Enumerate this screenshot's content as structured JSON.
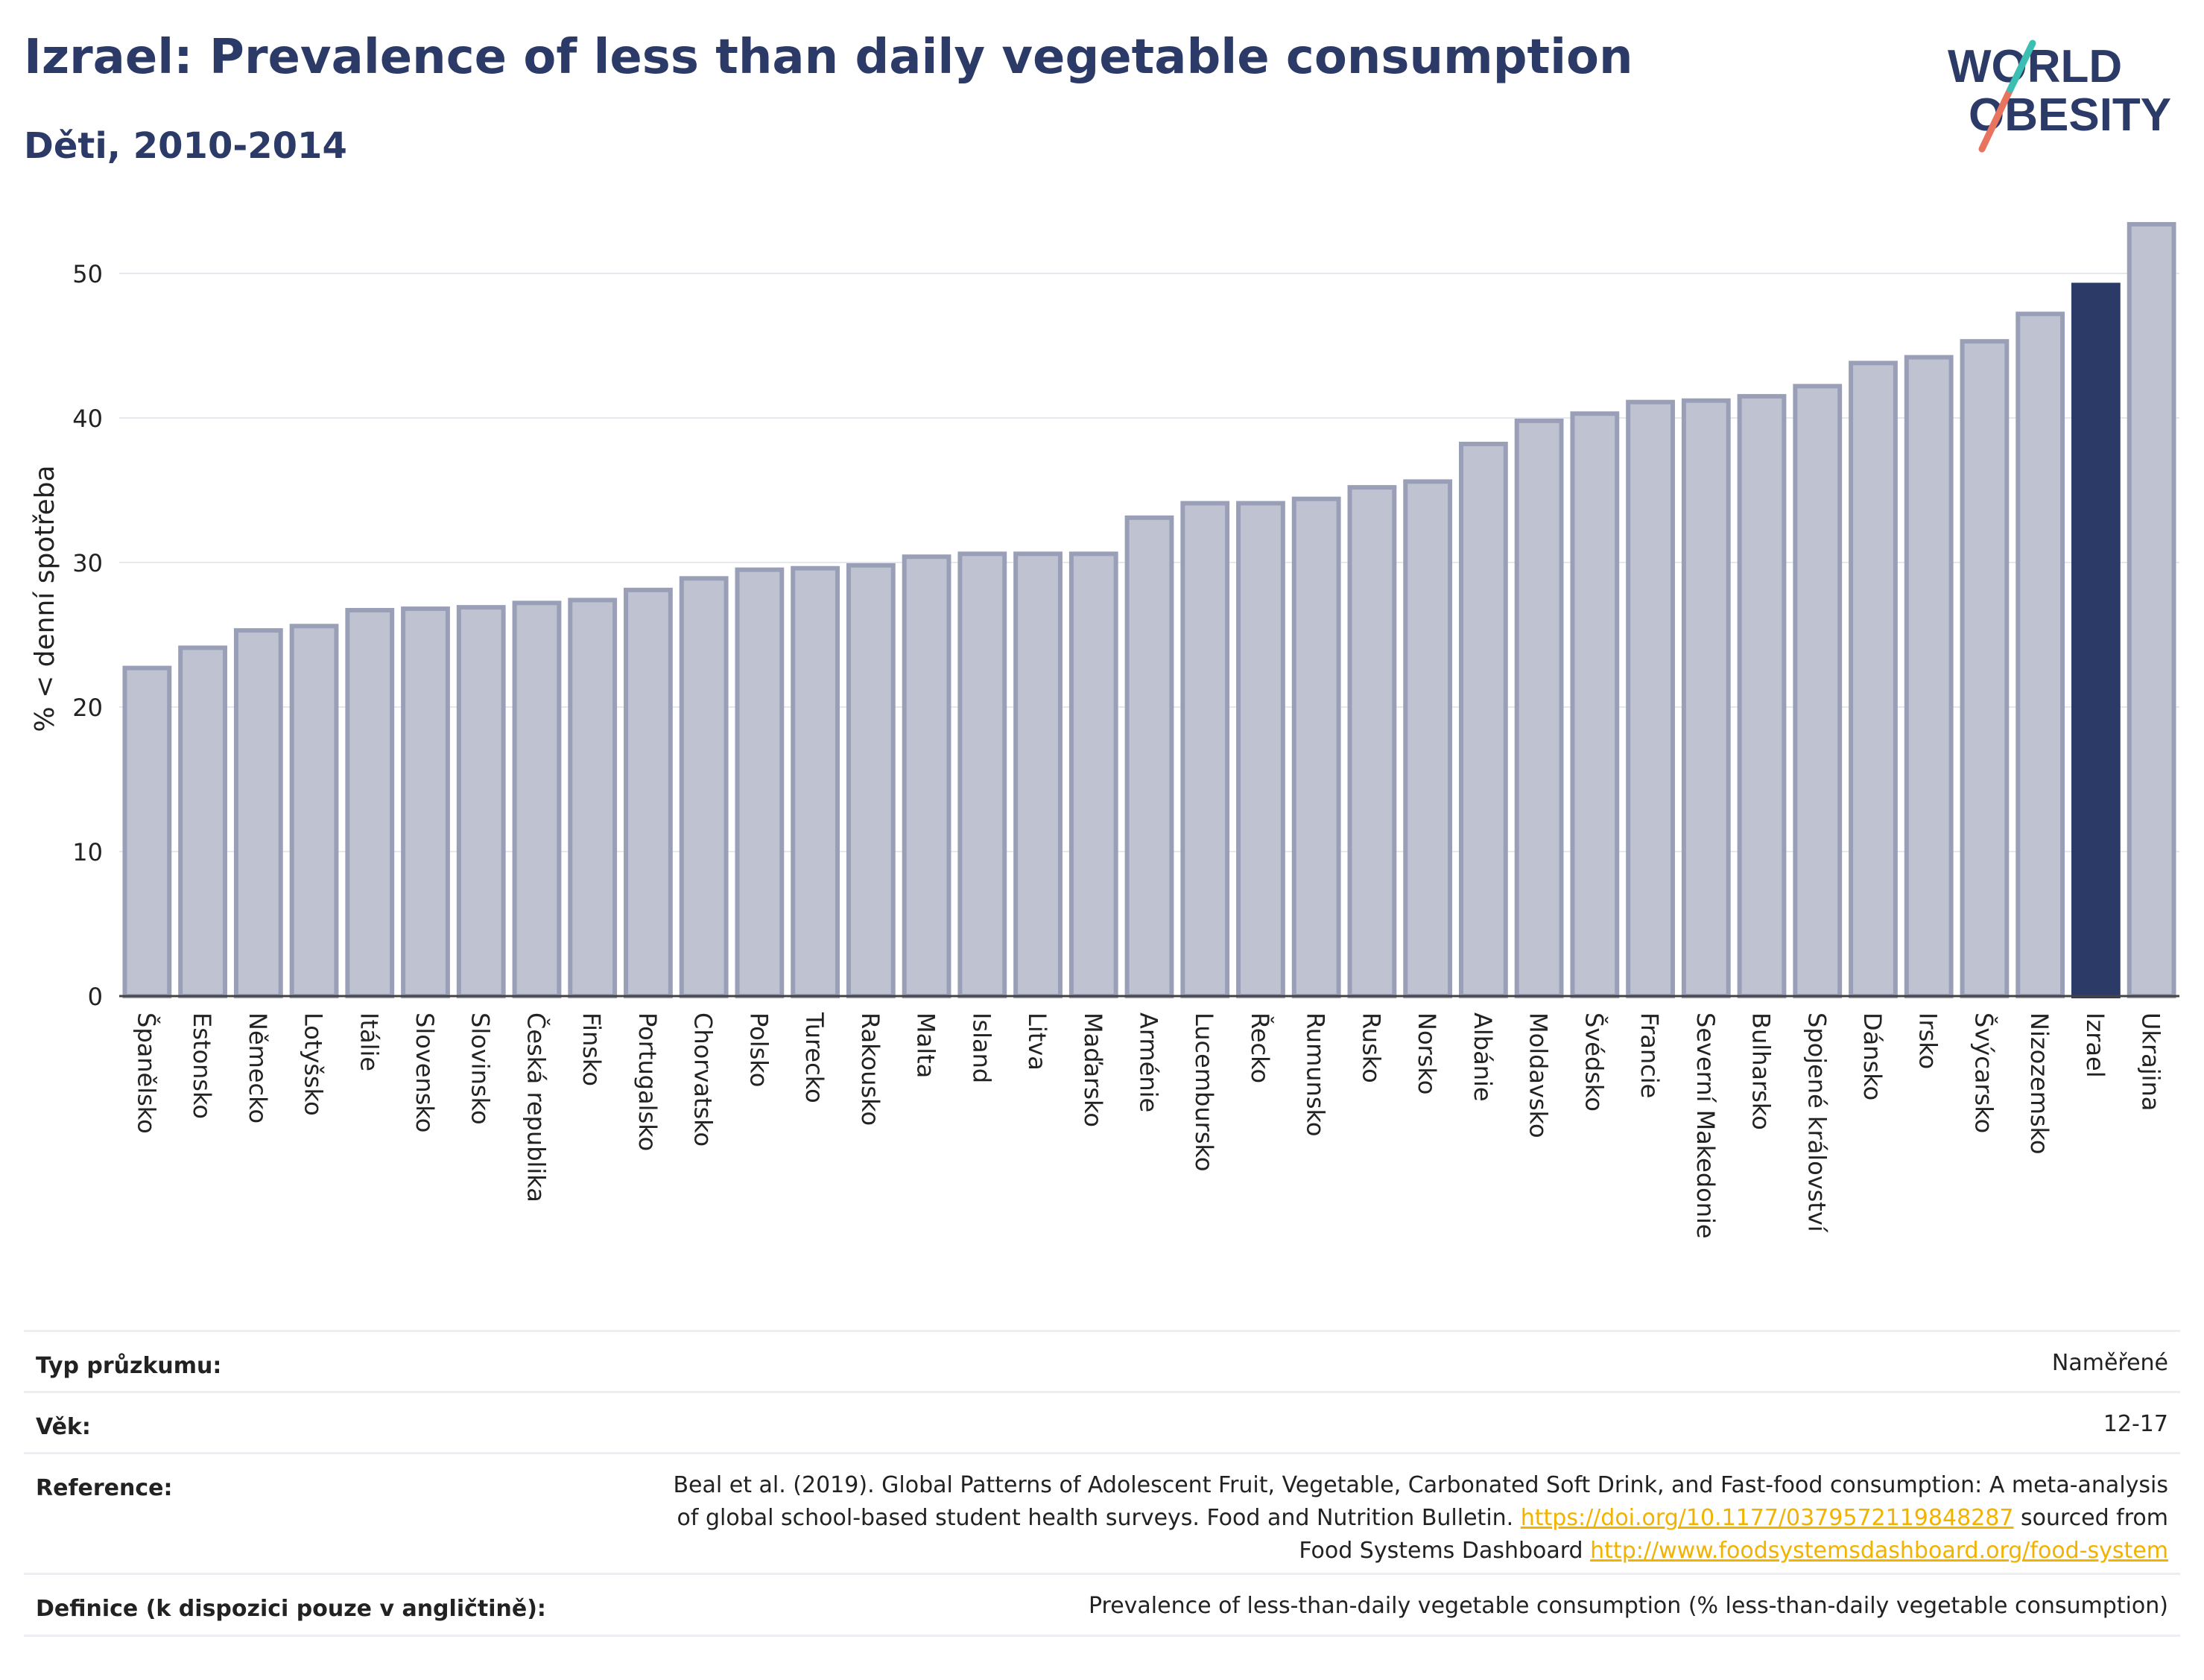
{
  "header": {
    "title": "Izrael: Prevalence of less than daily vegetable consumption",
    "subtitle": "Děti, 2010-2014"
  },
  "logo": {
    "line1": "WORLD",
    "line2": "OBESITY"
  },
  "colors": {
    "highlight": "#2b3a67",
    "bar_fill": "#bfc3d1",
    "bar_stroke": "#9a9fb8",
    "link": "#f2b200"
  },
  "chart_data": {
    "type": "bar",
    "ylabel": "% < denní spotřeba",
    "xlabel": "",
    "ylim": [
      0,
      55
    ],
    "yticks": [
      0,
      10,
      20,
      30,
      40,
      50
    ],
    "grid": true,
    "highlight": "Izrael",
    "categories": [
      "Španělsko",
      "Estonsko",
      "Německo",
      "Lotyšsko",
      "Itálie",
      "Slovensko",
      "Slovinsko",
      "Česká republika",
      "Finsko",
      "Portugalsko",
      "Chorvatsko",
      "Polsko",
      "Turecko",
      "Rakousko",
      "Malta",
      "Island",
      "Litva",
      "Maďarsko",
      "Arménie",
      "Lucembursko",
      "Řecko",
      "Rumunsko",
      "Rusko",
      "Norsko",
      "Albánie",
      "Moldavsko",
      "Švédsko",
      "Francie",
      "Severní Makedonie",
      "Bulharsko",
      "Spojené království",
      "Dánsko",
      "Irsko",
      "Švýcarsko",
      "Nizozemsko",
      "Izrael",
      "Ukrajina"
    ],
    "values": [
      22.7,
      24.1,
      25.3,
      25.6,
      26.7,
      26.8,
      26.9,
      27.2,
      27.4,
      28.1,
      28.9,
      29.5,
      29.6,
      29.8,
      30.4,
      30.6,
      30.6,
      30.6,
      33.1,
      34.1,
      34.1,
      34.4,
      35.2,
      35.6,
      38.2,
      39.8,
      40.3,
      41.1,
      41.2,
      41.5,
      42.2,
      43.8,
      44.2,
      45.3,
      47.2,
      49.2,
      53.4
    ]
  },
  "meta": {
    "rows": [
      {
        "label": "Typ průzkumu:",
        "value": "Naměřené"
      },
      {
        "label": "Věk:",
        "value": "12-17"
      },
      {
        "label": "Reference:",
        "ref_text1": "Beal et al. (2019). Global Patterns of Adolescent Fruit, Vegetable, Carbonated Soft Drink, and Fast-food consumption: A meta-analysis",
        "ref_text2": "of global school-based student health surveys. Food and Nutrition Bulletin.",
        "ref_link1": "https://doi.org/10.1177/0379572119848287",
        "ref_text3": "sourced from",
        "ref_text4": "Food Systems Dashboard",
        "ref_link2": "http://www.foodsystemsdashboard.org/food-system"
      },
      {
        "label": "Definice (k dispozici pouze v angličtině):",
        "value": "Prevalence of less-than-daily vegetable consumption (% less-than-daily vegetable consumption)"
      }
    ]
  }
}
